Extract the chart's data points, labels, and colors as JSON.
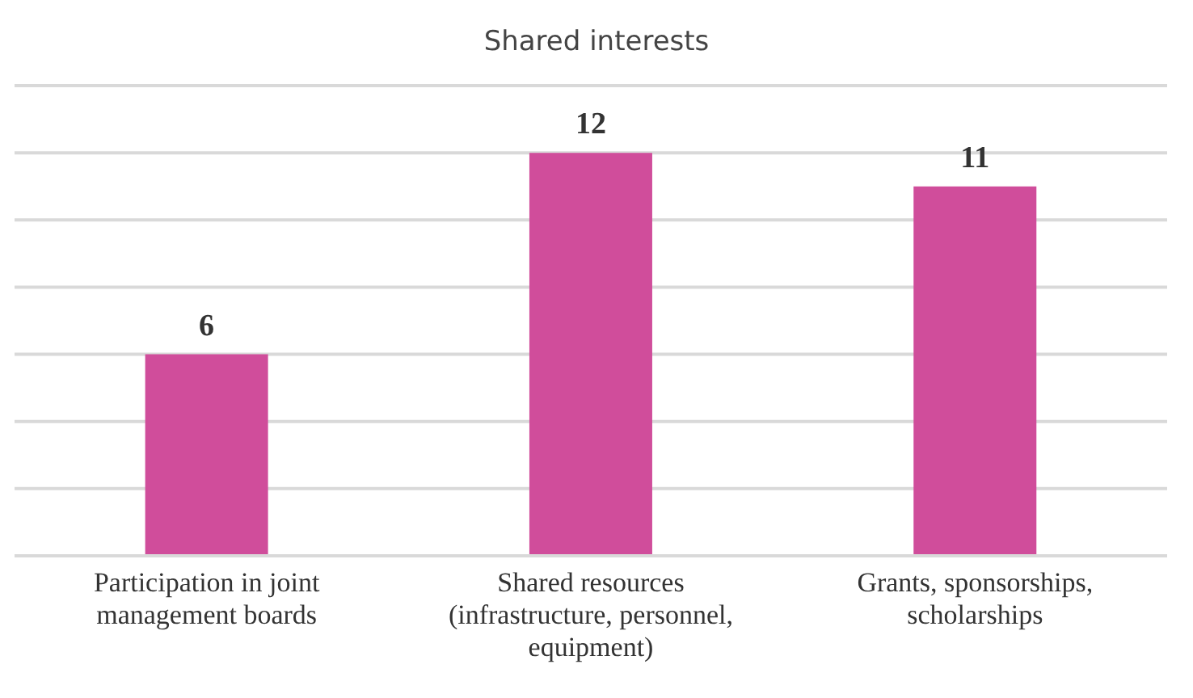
{
  "chart_data": {
    "type": "bar",
    "title": "Shared interests",
    "categories": [
      "Participation in joint management boards",
      "Shared resources (infrastructure, personnel, equipment)",
      "Grants, sponsorships, scholarships"
    ],
    "values": [
      6,
      12,
      11
    ],
    "color": "#d04d9b",
    "ylim": [
      0,
      14
    ],
    "yticks": [
      0,
      2,
      4,
      6,
      8,
      10,
      12,
      14
    ],
    "grid": "y",
    "tick_labels": "x",
    "data_labels": true
  }
}
